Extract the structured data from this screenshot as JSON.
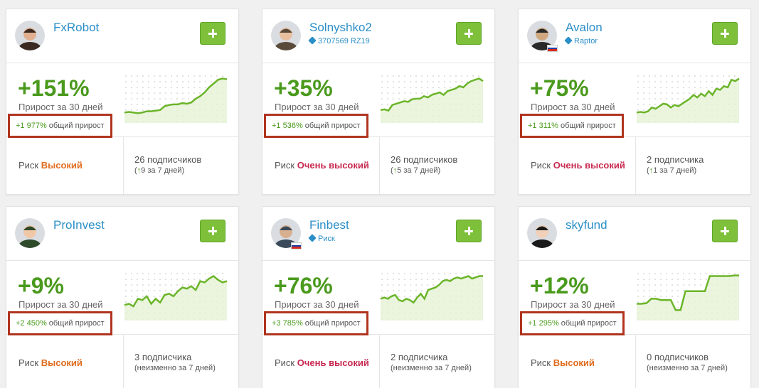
{
  "colors": {
    "accent_green": "#4a9a1d",
    "link_blue": "#2b8fc7",
    "risk_high": "#e06c1e",
    "risk_very_high": "#c8284f",
    "highlight_box": "#b0341e"
  },
  "cards": [
    {
      "name": "FxRobot",
      "subtitle": "",
      "gain": "+151%",
      "period": "Прирост за 30 дней",
      "total_value": "+1 977%",
      "total_label": "общий прирост",
      "risk_label": "Риск",
      "risk_value": "Высокий",
      "risk_level": "high",
      "subscribers": "26 подписчиков",
      "change_arrow": "↑",
      "change": "9 за 7 дней",
      "change_prefix": "(",
      "change_suffix": ")",
      "flag": "",
      "spark": [
        12,
        13,
        12,
        11,
        12,
        14,
        14,
        15,
        16,
        22,
        24,
        25,
        25,
        27,
        26,
        28,
        34,
        38,
        44,
        52,
        58,
        64,
        66,
        65
      ]
    },
    {
      "name": "Solnyshko2",
      "subtitle": "3707569 RZ19",
      "gain": "+35%",
      "period": "Прирост за 30 дней",
      "total_value": "+1 536%",
      "total_label": "общий прирост",
      "risk_label": "Риск",
      "risk_value": "Очень высокий",
      "risk_level": "very-high",
      "subscribers": "26 подписчиков",
      "change_arrow": "↑",
      "change": "5 за 7 дней",
      "change_prefix": "(",
      "change_suffix": ")",
      "flag": "",
      "spark": [
        16,
        17,
        15,
        24,
        26,
        28,
        30,
        29,
        33,
        34,
        34,
        38,
        36,
        40,
        42,
        44,
        40,
        46,
        48,
        50,
        54,
        52,
        58,
        62,
        64,
        66,
        62
      ]
    },
    {
      "name": "Avalon",
      "subtitle": "Raptor",
      "gain": "+75%",
      "period": "Прирост за 30 дней",
      "total_value": "+1 311%",
      "total_label": "общий прирост",
      "risk_label": "Риск",
      "risk_value": "Очень высокий",
      "risk_level": "very-high",
      "subscribers": "2 подписчика",
      "change_arrow": "↑",
      "change": "1 за 7 дней",
      "change_prefix": "(",
      "change_suffix": ")",
      "flag": "ru",
      "spark": [
        12,
        13,
        12,
        14,
        20,
        18,
        22,
        26,
        25,
        20,
        24,
        22,
        26,
        30,
        34,
        40,
        36,
        42,
        38,
        46,
        40,
        50,
        48,
        54,
        52,
        64,
        62,
        66
      ]
    },
    {
      "name": "ProInvest",
      "subtitle": "",
      "gain": "+9%",
      "period": "Прирост за 30 дней",
      "total_value": "+2 450%",
      "total_label": "общий прирост",
      "risk_label": "Риск",
      "risk_value": "Высокий",
      "risk_level": "high",
      "subscribers": "3 подписчика",
      "change_arrow": "",
      "change": "(неизменно за 7 дней)",
      "change_prefix": "",
      "change_suffix": "",
      "flag": "",
      "spark": [
        20,
        22,
        18,
        30,
        28,
        34,
        22,
        30,
        24,
        36,
        38,
        34,
        42,
        48,
        46,
        50,
        44,
        58,
        56,
        62,
        66,
        60,
        56,
        58
      ]
    },
    {
      "name": "Finbest",
      "subtitle": "Риск",
      "gain": "+76%",
      "period": "Прирост за 30 дней",
      "total_value": "+3 785%",
      "total_label": "общий прирост",
      "risk_label": "Риск",
      "risk_value": "Очень высокий",
      "risk_level": "very-high",
      "subscribers": "2 подписчика",
      "change_arrow": "",
      "change": "(неизменно за 7 дней)",
      "change_prefix": "",
      "change_suffix": "",
      "flag": "ru",
      "spark": [
        30,
        32,
        30,
        34,
        36,
        28,
        26,
        30,
        28,
        24,
        32,
        38,
        30,
        44,
        46,
        48,
        52,
        58,
        60,
        58,
        62,
        64,
        62,
        64,
        66,
        62,
        64,
        66,
        66
      ]
    },
    {
      "name": "skyfund",
      "subtitle": "",
      "gain": "+12%",
      "period": "Прирост за 30 дней",
      "total_value": "+1 295%",
      "total_label": "общий прирост",
      "risk_label": "Риск",
      "risk_value": "Высокий",
      "risk_level": "high",
      "subscribers": "0 подписчиков",
      "change_arrow": "",
      "change": "(неизменно за 7 дней)",
      "change_prefix": "",
      "change_suffix": "",
      "flag": "",
      "spark": [
        22,
        22,
        23,
        30,
        30,
        28,
        28,
        28,
        12,
        12,
        42,
        42,
        42,
        42,
        42,
        66,
        66,
        66,
        66,
        66,
        67,
        67
      ]
    }
  ]
}
